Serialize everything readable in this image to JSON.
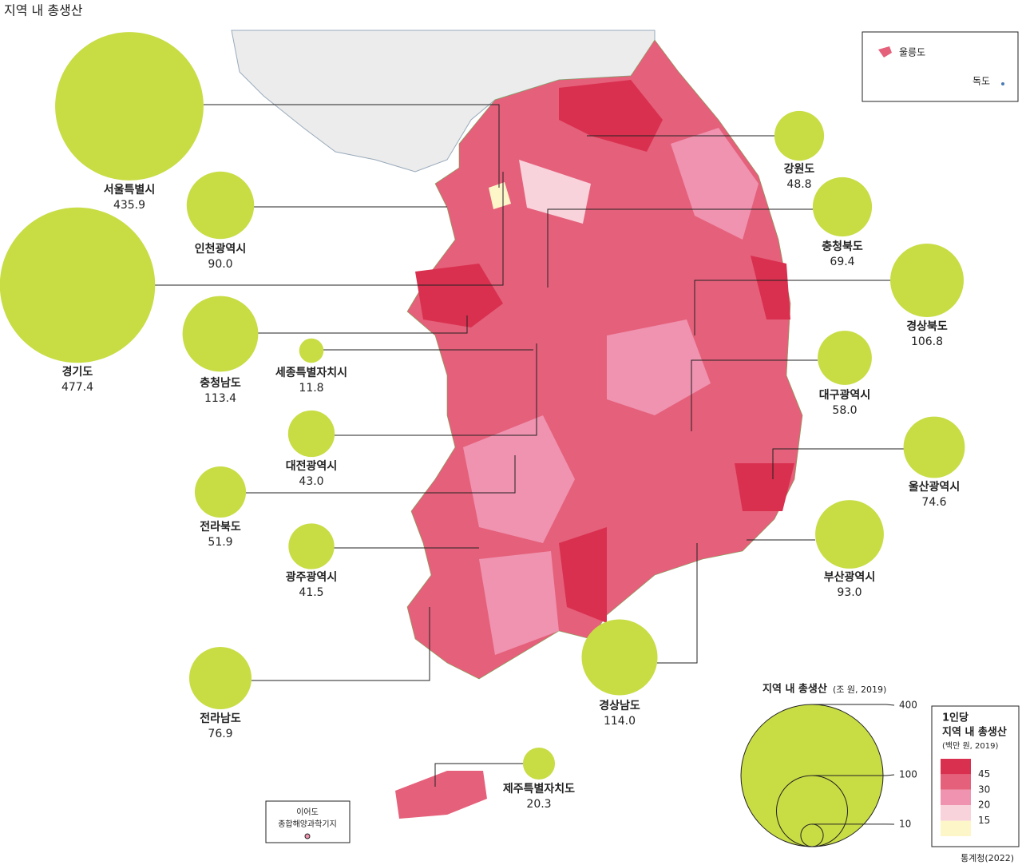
{
  "title": "지역 내 총생산",
  "regions": {
    "names": [
      "서울특별시",
      "인천광역시",
      "경기도",
      "충청남도",
      "세종특별자치시",
      "대전광역시",
      "전라북도",
      "광주광역시",
      "전라남도",
      "강원도",
      "충청북도",
      "경상북도",
      "대구광역시",
      "울산광역시",
      "부산광역시",
      "경상남도",
      "제주특별자치도"
    ],
    "values": [
      435.9,
      90.0,
      477.4,
      113.4,
      11.8,
      43.0,
      51.9,
      41.5,
      76.9,
      48.8,
      69.4,
      106.8,
      58.0,
      74.6,
      93.0,
      114.0,
      20.3
    ],
    "value_labels": [
      "435.9",
      "90.0",
      "477.4",
      "113.4",
      "11.8",
      "43.0",
      "51.9",
      "41.5",
      "76.9",
      "48.8",
      "69.4",
      "106.8",
      "58.0",
      "74.6",
      "93.0",
      "114.0",
      "20.3"
    ],
    "color": "#c8dc44"
  },
  "insets": {
    "ulleungdo": "울릉도",
    "dokdo": "독도"
  },
  "ieodo": [
    "이어도",
    "종합해양과학기지"
  ],
  "size_legend": {
    "title": "지역 내 총생산",
    "unit": "(조 원, 2019)",
    "values": [
      400,
      100,
      10
    ]
  },
  "color_legend": {
    "title": [
      "1인당",
      "지역 내 총생산"
    ],
    "unit": "(백만 원, 2019)",
    "breaks": [
      45,
      30,
      20,
      15
    ],
    "colors": [
      "#d9304f",
      "#e5607a",
      "#ef93b0",
      "#f8d3dc",
      "#fdf6c9"
    ]
  },
  "source": "통계청(2022)"
}
